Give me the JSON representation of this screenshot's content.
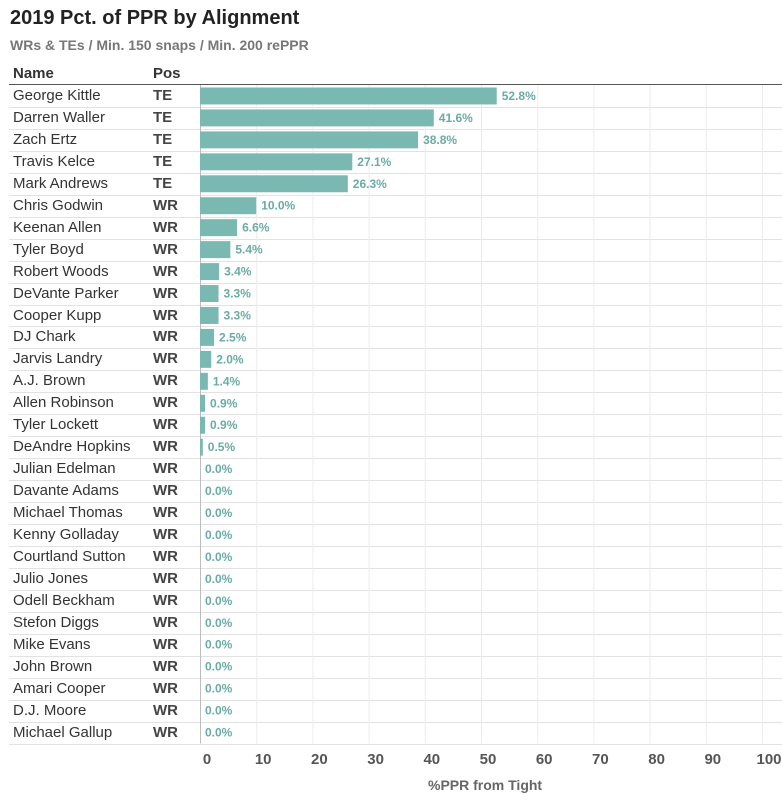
{
  "title": "2019 Pct. of PPR by Alignment",
  "subtitle": "WRs & TEs / Min. 150 snaps / Min. 200 rePPR",
  "columns": {
    "name": "Name",
    "pos": "Pos"
  },
  "colors": {
    "bar": "#7ab9b2",
    "label": "#6aaca5",
    "grid": "#e2e2e2"
  },
  "chart_data": {
    "type": "bar",
    "orientation": "horizontal",
    "xlabel": "%PPR from Tight",
    "xlim": [
      0,
      100
    ],
    "xticks": [
      0,
      10,
      20,
      30,
      40,
      50,
      60,
      70,
      80,
      90,
      100
    ],
    "value_suffix": "%",
    "rows": [
      {
        "name": "George Kittle",
        "pos": "TE",
        "value": 52.8
      },
      {
        "name": "Darren Waller",
        "pos": "TE",
        "value": 41.6
      },
      {
        "name": "Zach Ertz",
        "pos": "TE",
        "value": 38.8
      },
      {
        "name": "Travis Kelce",
        "pos": "TE",
        "value": 27.1
      },
      {
        "name": "Mark Andrews",
        "pos": "TE",
        "value": 26.3
      },
      {
        "name": "Chris Godwin",
        "pos": "WR",
        "value": 10.0
      },
      {
        "name": "Keenan Allen",
        "pos": "WR",
        "value": 6.6
      },
      {
        "name": "Tyler Boyd",
        "pos": "WR",
        "value": 5.4
      },
      {
        "name": "Robert Woods",
        "pos": "WR",
        "value": 3.4
      },
      {
        "name": "DeVante Parker",
        "pos": "WR",
        "value": 3.3
      },
      {
        "name": "Cooper Kupp",
        "pos": "WR",
        "value": 3.3
      },
      {
        "name": "DJ Chark",
        "pos": "WR",
        "value": 2.5
      },
      {
        "name": "Jarvis Landry",
        "pos": "WR",
        "value": 2.0
      },
      {
        "name": "A.J. Brown",
        "pos": "WR",
        "value": 1.4
      },
      {
        "name": "Allen Robinson",
        "pos": "WR",
        "value": 0.9
      },
      {
        "name": "Tyler Lockett",
        "pos": "WR",
        "value": 0.9
      },
      {
        "name": "DeAndre Hopkins",
        "pos": "WR",
        "value": 0.5
      },
      {
        "name": "Julian Edelman",
        "pos": "WR",
        "value": 0.0
      },
      {
        "name": "Davante Adams",
        "pos": "WR",
        "value": 0.0
      },
      {
        "name": "Michael Thomas",
        "pos": "WR",
        "value": 0.0
      },
      {
        "name": "Kenny Golladay",
        "pos": "WR",
        "value": 0.0
      },
      {
        "name": "Courtland Sutton",
        "pos": "WR",
        "value": 0.0
      },
      {
        "name": "Julio Jones",
        "pos": "WR",
        "value": 0.0
      },
      {
        "name": "Odell Beckham",
        "pos": "WR",
        "value": 0.0
      },
      {
        "name": "Stefon Diggs",
        "pos": "WR",
        "value": 0.0
      },
      {
        "name": "Mike Evans",
        "pos": "WR",
        "value": 0.0
      },
      {
        "name": "John Brown",
        "pos": "WR",
        "value": 0.0
      },
      {
        "name": "Amari Cooper",
        "pos": "WR",
        "value": 0.0
      },
      {
        "name": "D.J. Moore",
        "pos": "WR",
        "value": 0.0
      },
      {
        "name": "Michael Gallup",
        "pos": "WR",
        "value": 0.0
      }
    ]
  }
}
